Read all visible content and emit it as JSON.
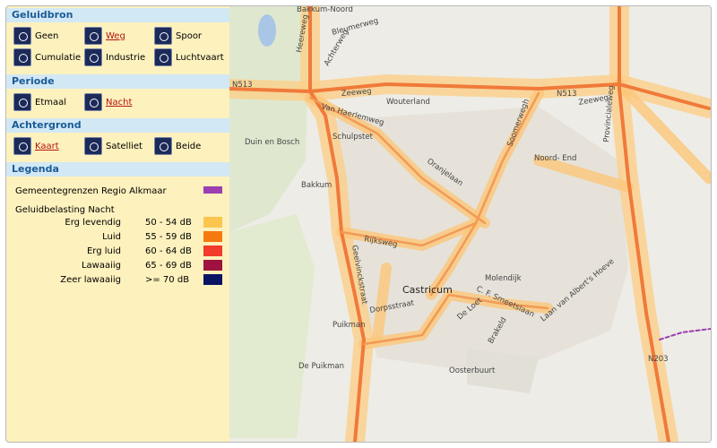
{
  "panel": {
    "sections": [
      {
        "title": "Geluidbron",
        "options": [
          {
            "label": "Geen",
            "selected": false
          },
          {
            "label": "Weg",
            "selected": true
          },
          {
            "label": "Spoor",
            "selected": false
          },
          {
            "label": "Cumulatie",
            "selected": false
          },
          {
            "label": "Industrie",
            "selected": false
          },
          {
            "label": "Luchtvaart",
            "selected": false
          }
        ]
      },
      {
        "title": "Periode",
        "options": [
          {
            "label": "Etmaal",
            "selected": false
          },
          {
            "label": "Nacht",
            "selected": true
          }
        ]
      },
      {
        "title": "Achtergrond",
        "options": [
          {
            "label": "Kaart",
            "selected": true
          },
          {
            "label": "Satelliet",
            "selected": false
          },
          {
            "label": "Beide",
            "selected": false
          }
        ]
      }
    ],
    "legend": {
      "title": "Legenda",
      "boundary": {
        "label": "Gemeentegrenzen Regio Alkmaar",
        "color": "#9b3fb2"
      },
      "noise_title": "Geluidbelasting Nacht",
      "rows": [
        {
          "label": "Erg levendig",
          "range": "50 - 54 dB",
          "color": "#fcc54e"
        },
        {
          "label": "Luid",
          "range": "55 - 59 dB",
          "color": "#f6790f"
        },
        {
          "label": "Erg luid",
          "range": "60 - 64 dB",
          "color": "#f23b2c"
        },
        {
          "label": "Lawaaiig",
          "range": "65 - 69 dB",
          "color": "#9e1140"
        },
        {
          "label": "Zeer lawaaiig",
          "range": ">= 70 dB",
          "color": "#0b1463"
        }
      ]
    }
  },
  "map": {
    "labels": [
      "Bakkum-Noord",
      "Heereweg",
      "Bleumerweg",
      "Achterweg",
      "N513",
      "Zeeweg",
      "N513",
      "Zeeweg",
      "Wouterland",
      "Van Haerlemweg",
      "Schulpstet",
      "Duin en Bosch",
      "Bakkum",
      "Oranjelaan",
      "Soomerwegh",
      "Noord- End",
      "Provincialeweg",
      "N203",
      "Rijksweg",
      "Castricum",
      "Molendijk",
      "Puikman",
      "De Puikman",
      "Oosterbuurt",
      "De Loet",
      "C. F. Smeetslaan",
      "Dorpsstraat",
      "Laan van Albert's Hoeve",
      "Brakeld",
      "Geelvinckstraat"
    ]
  }
}
